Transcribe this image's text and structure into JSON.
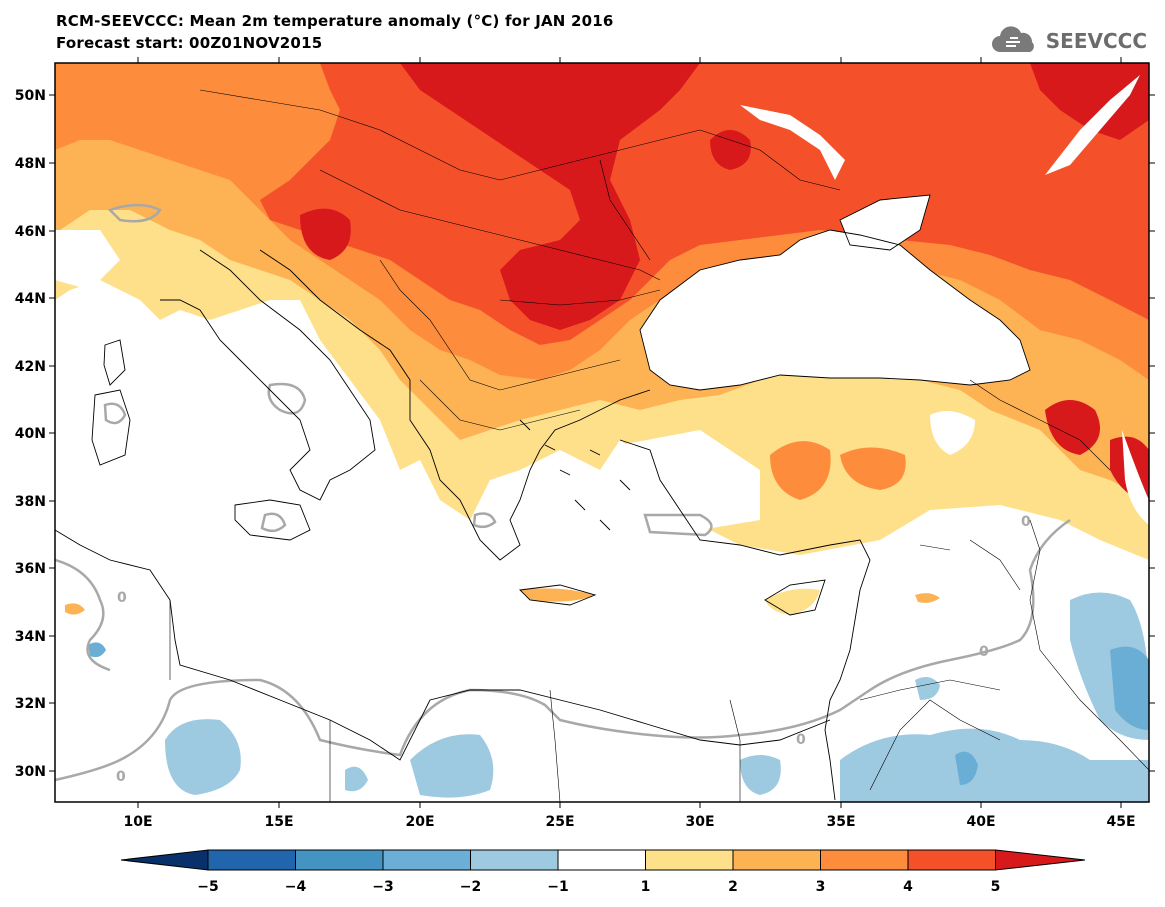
{
  "header": {
    "title": "RCM-SEEVCCC: Mean 2m temperature anomaly (°C) for JAN 2016",
    "subtitle": "Forecast start: 00Z01NOV2015"
  },
  "logo": {
    "text": "SEEVCCC",
    "icon": "cloud-logo-icon"
  },
  "map": {
    "lat_labels": [
      "50N",
      "48N",
      "46N",
      "44N",
      "42N",
      "40N",
      "38N",
      "36N",
      "34N",
      "32N",
      "30N"
    ],
    "lon_labels": [
      "10E",
      "15E",
      "20E",
      "25E",
      "30E",
      "35E",
      "40E",
      "45E"
    ],
    "contour_label": "0",
    "colors": {
      "red_dark": "#d7191c",
      "red": "#f4502a",
      "orange": "#fd8c3c",
      "light_orange": "#fdb254",
      "yellow": "#fee08b",
      "light_blue": "#9ecae1",
      "blue": "#6aaed6",
      "contour": "#a8a8a8"
    }
  },
  "colorbar": {
    "ticks": [
      "−5",
      "−4",
      "−3",
      "−2",
      "−1",
      "1",
      "2",
      "3",
      "4",
      "5"
    ],
    "colors": [
      "#08306b",
      "#2166ac",
      "#4393c3",
      "#6baed6",
      "#9ecae1",
      "#ffffff",
      "#fee08b",
      "#fdb254",
      "#fd8c3c",
      "#f4502a",
      "#d7191c"
    ]
  }
}
